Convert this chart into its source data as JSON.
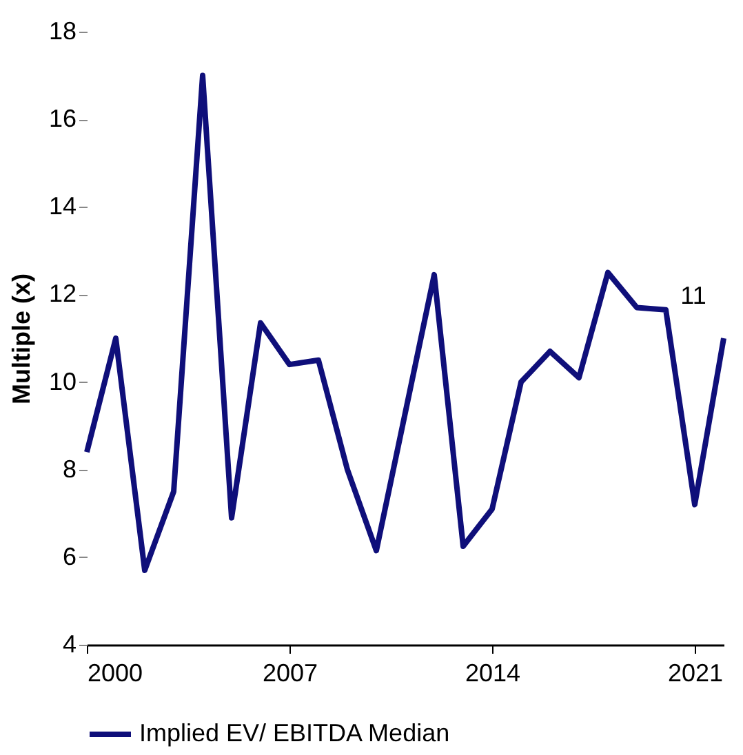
{
  "chart_data": {
    "type": "line",
    "ylabel": "Multiple (x)",
    "x": [
      2000,
      2001,
      2002,
      2003,
      2004,
      2005,
      2006,
      2007,
      2008,
      2009,
      2010,
      2011,
      2012,
      2013,
      2014,
      2015,
      2016,
      2017,
      2018,
      2019,
      2020,
      2021,
      2022
    ],
    "series": [
      {
        "name": "Implied EV/ EBITDA Median",
        "color": "#0f0f7a",
        "values": [
          8.4,
          11.0,
          5.7,
          7.5,
          17.0,
          6.9,
          11.35,
          10.4,
          10.5,
          8.0,
          6.15,
          9.3,
          12.45,
          6.25,
          7.1,
          10.0,
          10.7,
          10.1,
          12.5,
          11.7,
          11.65,
          7.2,
          11
        ],
        "value_labels": [
          null,
          null,
          null,
          null,
          null,
          null,
          null,
          null,
          null,
          null,
          null,
          null,
          null,
          null,
          null,
          null,
          null,
          null,
          null,
          null,
          null,
          null,
          "11"
        ]
      }
    ],
    "xlim": [
      2000,
      2022
    ],
    "xticks": [
      2000,
      2007,
      2014,
      2021
    ],
    "ylim": [
      4,
      18
    ],
    "yticks": [
      4,
      6,
      8,
      10,
      12,
      14,
      16,
      18
    ],
    "grid": false,
    "legend": "bottom",
    "marker": "none",
    "line_style": "solid"
  }
}
